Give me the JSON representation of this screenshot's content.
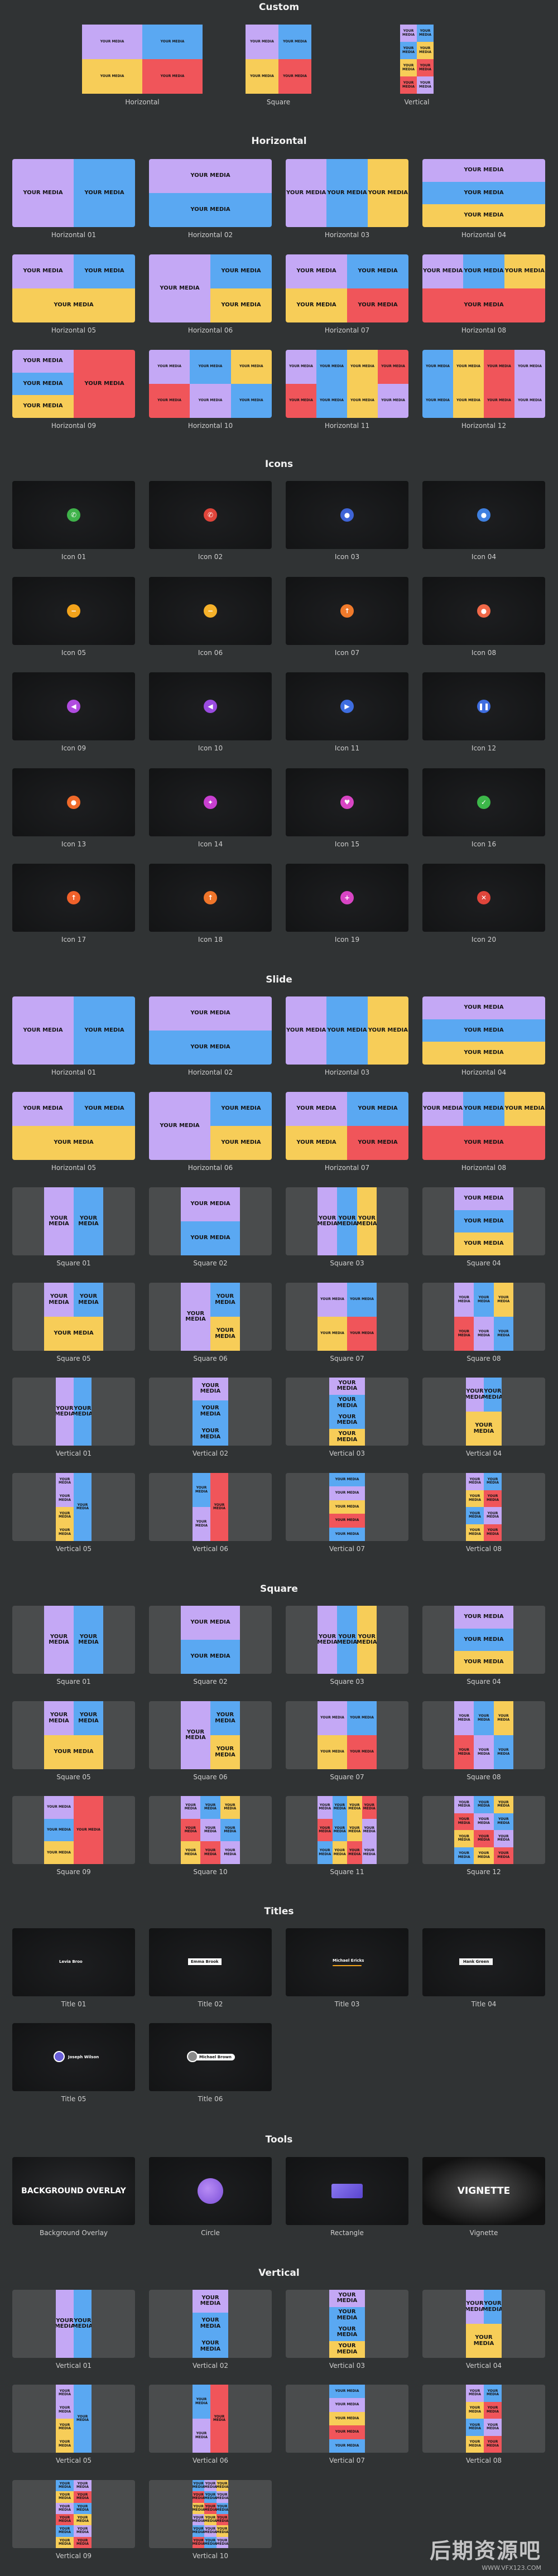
{
  "sections": {
    "custom": "Custom",
    "horizontal": "Horizontal",
    "icons": "Icons",
    "slide": "Slide",
    "square": "Square",
    "titles": "Titles",
    "tools": "Tools",
    "vertical": "Vertical"
  },
  "media_text": "YOUR MEDIA",
  "custom_labels": [
    "Horizontal",
    "Square",
    "Vertical"
  ],
  "horizontal_labels": [
    "Horizontal 01",
    "Horizontal 02",
    "Horizontal 03",
    "Horizontal 04",
    "Horizontal 05",
    "Horizontal 06",
    "Horizontal 07",
    "Horizontal 08",
    "Horizontal 09",
    "Horizontal 10",
    "Horizontal 11",
    "Horizontal 12"
  ],
  "icons": [
    {
      "label": "Icon 01",
      "name": "phone-icon",
      "color": "#3fb24a",
      "glyph": "✆"
    },
    {
      "label": "Icon 02",
      "name": "hangup-icon",
      "color": "#e0453b",
      "glyph": "✆"
    },
    {
      "label": "Icon 03",
      "name": "user-icon",
      "color": "#3f64d6",
      "glyph": "●"
    },
    {
      "label": "Icon 04",
      "name": "user-icon",
      "color": "#3f80e0",
      "glyph": "●"
    },
    {
      "label": "Icon 05",
      "name": "minus-icon",
      "color": "#f2a31b",
      "glyph": "−"
    },
    {
      "label": "Icon 06",
      "name": "minus-icon",
      "color": "#f5b12a",
      "glyph": "−"
    },
    {
      "label": "Icon 07",
      "name": "arrow-icon",
      "color": "#f07a2b",
      "glyph": "↑"
    },
    {
      "label": "Icon 08",
      "name": "circle-icon",
      "color": "#f06848",
      "glyph": "●"
    },
    {
      "label": "Icon 09",
      "name": "sound-icon",
      "color": "#b04be0",
      "glyph": "◀"
    },
    {
      "label": "Icon 10",
      "name": "sound-icon",
      "color": "#9a4be0",
      "glyph": "◀"
    },
    {
      "label": "Icon 11",
      "name": "play-icon",
      "color": "#3e6de0",
      "glyph": "▶"
    },
    {
      "label": "Icon 12",
      "name": "pause-icon",
      "color": "#3e6de0",
      "glyph": "❚❚"
    },
    {
      "label": "Icon 13",
      "name": "fire-icon",
      "color": "#f06a2a",
      "glyph": "●"
    },
    {
      "label": "Icon 14",
      "name": "star-icon",
      "color": "#c83fd0",
      "glyph": "✦"
    },
    {
      "label": "Icon 15",
      "name": "heart-icon",
      "color": "#d845c4",
      "glyph": "♥"
    },
    {
      "label": "Icon 16",
      "name": "check-icon",
      "color": "#3db84a",
      "glyph": "✓"
    },
    {
      "label": "Icon 17",
      "name": "arrow-up-icon",
      "color": "#f0612a",
      "glyph": "↑"
    },
    {
      "label": "Icon 18",
      "name": "arrow-up-icon",
      "color": "#f0752a",
      "glyph": "↑"
    },
    {
      "label": "Icon 19",
      "name": "plus-icon",
      "color": "#d845c4",
      "glyph": "+"
    },
    {
      "label": "Icon 20",
      "name": "close-icon",
      "color": "#e0453b",
      "glyph": "✕"
    }
  ],
  "slide_labels": [
    "Horizontal 01",
    "Horizontal 02",
    "Horizontal 03",
    "Horizontal 04",
    "Horizontal 05",
    "Horizontal 06",
    "Horizontal 07",
    "Horizontal 08",
    "Square 01",
    "Square 02",
    "Square 03",
    "Square 04",
    "Square 05",
    "Square 06",
    "Square 07",
    "Square 08",
    "Vertical 01",
    "Vertical 02",
    "Vertical 03",
    "Vertical 04",
    "Vertical 05",
    "Vertical 06",
    "Vertical 07",
    "Vertical 08"
  ],
  "square_labels": [
    "Square 01",
    "Square 02",
    "Square 03",
    "Square 04",
    "Square 05",
    "Square 06",
    "Square 07",
    "Square 08",
    "Square 09",
    "Square 10",
    "Square 11",
    "Square 12"
  ],
  "titles": [
    {
      "label": "Title 01",
      "name": "Levia Broo"
    },
    {
      "label": "Title 02",
      "name": "Emma Brook"
    },
    {
      "label": "Title 03",
      "name": "Michael Ericks"
    },
    {
      "label": "Title 04",
      "name": "Hank Green"
    },
    {
      "label": "Title 05",
      "name": "Joseph Wilson"
    },
    {
      "label": "Title 06",
      "name": "Michael Brown"
    }
  ],
  "tools": [
    {
      "label": "Background Overlay",
      "text": "BACKGROUND OVERLAY"
    },
    {
      "label": "Circle",
      "text": ""
    },
    {
      "label": "Rectangle",
      "text": ""
    },
    {
      "label": "Vignette",
      "text": "VIGNETTE"
    }
  ],
  "vertical_labels": [
    "Vertical 01",
    "Vertical 02",
    "Vertical 03",
    "Vertical 04",
    "Vertical 05",
    "Vertical 06",
    "Vertical 07",
    "Vertical 08",
    "Vertical 09",
    "Vertical 10"
  ],
  "watermark": {
    "big": "后期资源吧",
    "small": "WWW.VFX123.COM"
  },
  "colors": {
    "purple": "#c4a8f5",
    "blue": "#5aa8f2",
    "yellow": "#f7cd58",
    "red": "#f0555a",
    "card": "#202223",
    "page": "#303334"
  }
}
